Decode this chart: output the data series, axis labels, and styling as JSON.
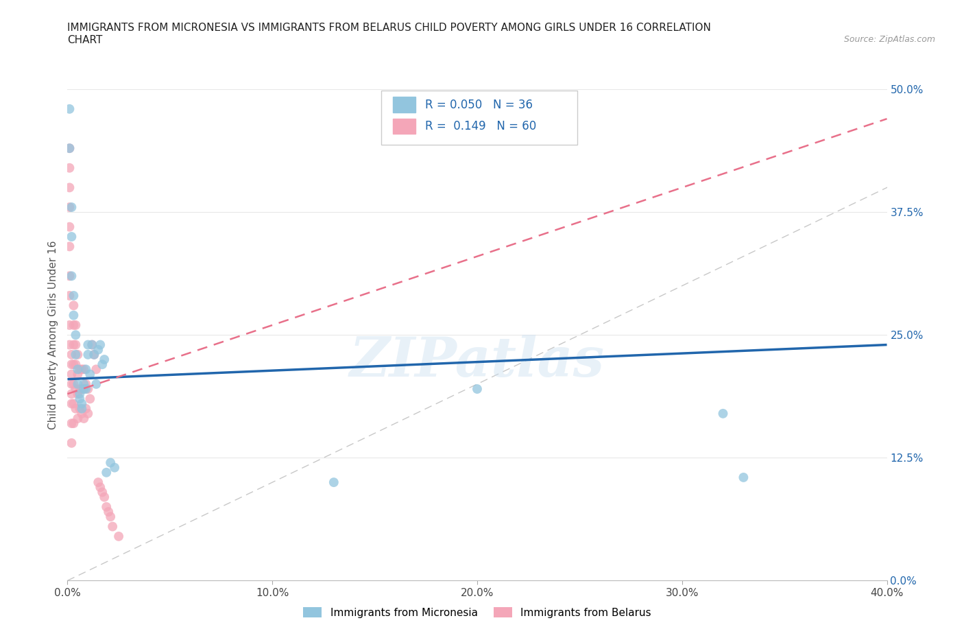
{
  "title_line1": "IMMIGRANTS FROM MICRONESIA VS IMMIGRANTS FROM BELARUS CHILD POVERTY AMONG GIRLS UNDER 16 CORRELATION",
  "title_line2": "CHART",
  "source": "Source: ZipAtlas.com",
  "ylabel": "Child Poverty Among Girls Under 16",
  "xlim": [
    0,
    0.4
  ],
  "ylim": [
    0,
    0.5
  ],
  "r_micronesia": 0.05,
  "n_micronesia": 36,
  "r_belarus": 0.149,
  "n_belarus": 60,
  "color_micronesia": "#92c5de",
  "color_belarus": "#f4a6b8",
  "trendline_color_micronesia": "#2166ac",
  "trendline_color_belarus": "#e8708a",
  "watermark": "ZIPatlas",
  "mic_x": [
    0.001,
    0.001,
    0.002,
    0.002,
    0.002,
    0.003,
    0.003,
    0.004,
    0.004,
    0.005,
    0.005,
    0.006,
    0.006,
    0.007,
    0.007,
    0.008,
    0.008,
    0.009,
    0.009,
    0.01,
    0.01,
    0.011,
    0.012,
    0.013,
    0.014,
    0.015,
    0.016,
    0.017,
    0.018,
    0.019,
    0.021,
    0.023,
    0.13,
    0.2,
    0.32,
    0.33
  ],
  "mic_y": [
    0.48,
    0.44,
    0.38,
    0.35,
    0.31,
    0.29,
    0.27,
    0.25,
    0.23,
    0.215,
    0.2,
    0.19,
    0.185,
    0.18,
    0.175,
    0.195,
    0.2,
    0.215,
    0.195,
    0.24,
    0.23,
    0.21,
    0.24,
    0.23,
    0.2,
    0.235,
    0.24,
    0.22,
    0.225,
    0.11,
    0.12,
    0.115,
    0.1,
    0.195,
    0.17,
    0.105
  ],
  "bel_x": [
    0.001,
    0.001,
    0.001,
    0.001,
    0.001,
    0.001,
    0.001,
    0.001,
    0.001,
    0.001,
    0.002,
    0.002,
    0.002,
    0.002,
    0.002,
    0.002,
    0.002,
    0.002,
    0.003,
    0.003,
    0.003,
    0.003,
    0.003,
    0.003,
    0.003,
    0.004,
    0.004,
    0.004,
    0.004,
    0.004,
    0.005,
    0.005,
    0.005,
    0.005,
    0.006,
    0.006,
    0.006,
    0.007,
    0.007,
    0.007,
    0.008,
    0.008,
    0.008,
    0.009,
    0.009,
    0.01,
    0.01,
    0.011,
    0.012,
    0.013,
    0.014,
    0.015,
    0.016,
    0.017,
    0.018,
    0.019,
    0.02,
    0.021,
    0.022,
    0.025
  ],
  "bel_y": [
    0.44,
    0.42,
    0.4,
    0.38,
    0.36,
    0.34,
    0.31,
    0.29,
    0.26,
    0.24,
    0.23,
    0.22,
    0.21,
    0.2,
    0.19,
    0.18,
    0.16,
    0.14,
    0.28,
    0.26,
    0.24,
    0.22,
    0.2,
    0.18,
    0.16,
    0.26,
    0.24,
    0.22,
    0.195,
    0.175,
    0.23,
    0.21,
    0.19,
    0.165,
    0.215,
    0.195,
    0.175,
    0.215,
    0.195,
    0.17,
    0.215,
    0.195,
    0.165,
    0.2,
    0.175,
    0.195,
    0.17,
    0.185,
    0.24,
    0.23,
    0.215,
    0.1,
    0.095,
    0.09,
    0.085,
    0.075,
    0.07,
    0.065,
    0.055,
    0.045
  ]
}
